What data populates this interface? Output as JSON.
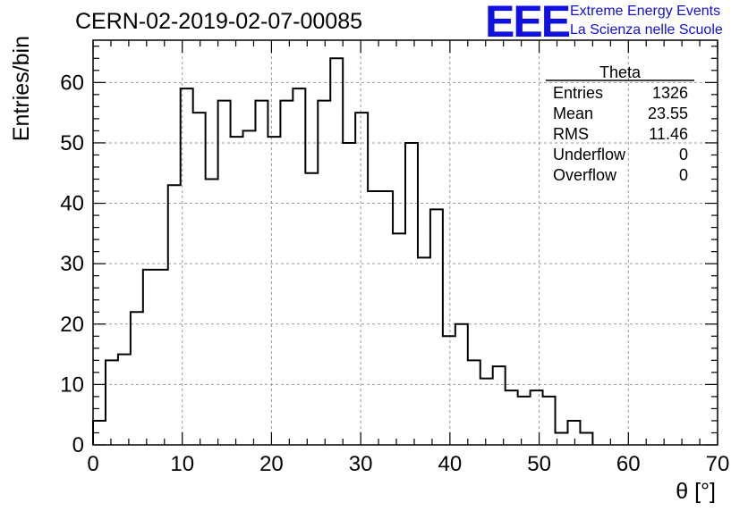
{
  "header": {
    "title": "CERN-02-2019-02-07-00085",
    "logo_text": "EEE",
    "logo_line1": "Extreme Energy Events",
    "logo_line2": "La Scienza nelle Scuole",
    "logo_color": "#1010e0"
  },
  "stats": {
    "name": "Theta",
    "rows": [
      {
        "label": "Entries",
        "value": "1326"
      },
      {
        "label": "Mean",
        "value": "23.55"
      },
      {
        "label": "RMS",
        "value": "11.46"
      },
      {
        "label": "Underflow",
        "value": "0"
      },
      {
        "label": "Overflow",
        "value": "0"
      }
    ]
  },
  "chart_data": {
    "type": "bar",
    "style": "step-histogram",
    "title": "CERN-02-2019-02-07-00085",
    "xlabel": "θ [°]",
    "ylabel": "Entries/bin",
    "xlim": [
      0,
      70
    ],
    "ylim": [
      0,
      67
    ],
    "bin_width": 1.4,
    "bin_edges_start": 0,
    "values": [
      4,
      14,
      15,
      22,
      29,
      29,
      43,
      59,
      55,
      44,
      57,
      51,
      52,
      57,
      51,
      57,
      59,
      45,
      57,
      64,
      50,
      55,
      42,
      42,
      35,
      50,
      31,
      39,
      18,
      20,
      14,
      11,
      13,
      9,
      8,
      9,
      8,
      2,
      4,
      2,
      0,
      0,
      0,
      0,
      0,
      0,
      0,
      0,
      0,
      0
    ],
    "x_ticks": [
      0,
      10,
      20,
      30,
      40,
      50,
      60,
      70
    ],
    "y_ticks": [
      0,
      10,
      20,
      30,
      40,
      50,
      60
    ],
    "grid": true,
    "legend": "top-right"
  }
}
